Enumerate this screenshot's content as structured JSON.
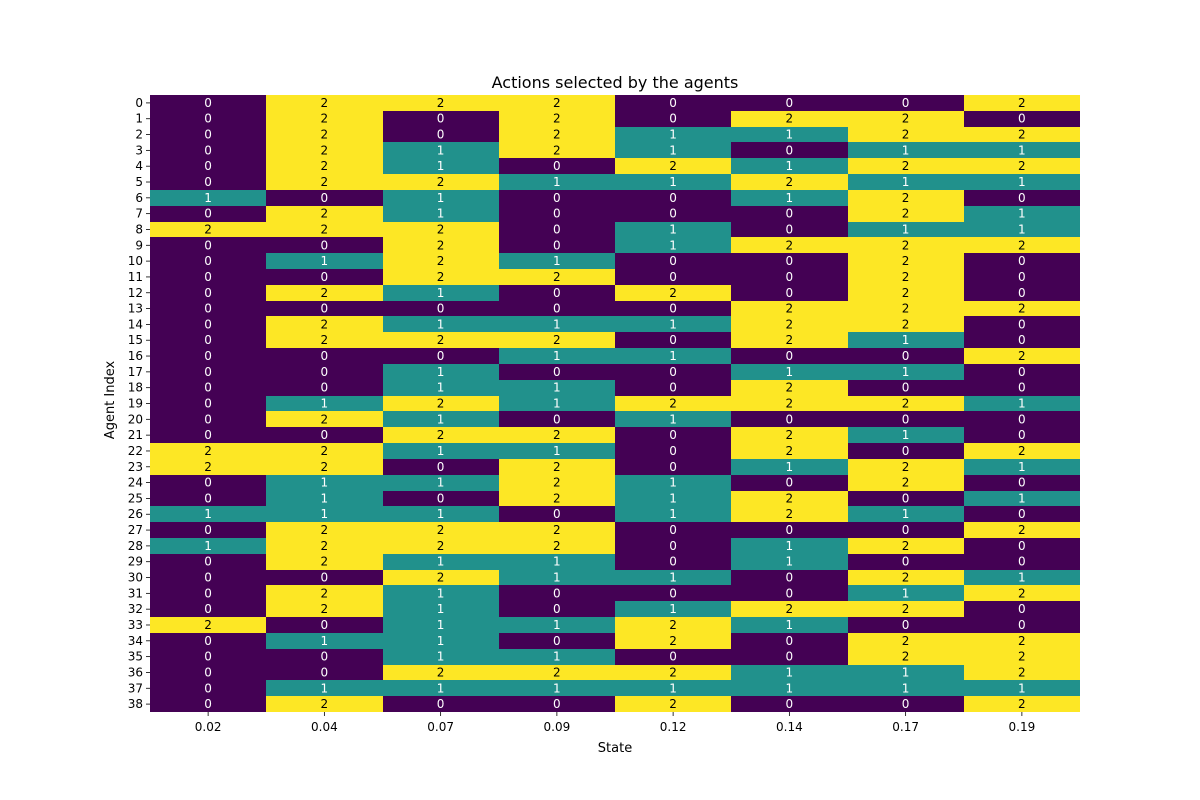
{
  "chart_data": {
    "type": "heatmap",
    "title": "Actions selected by the agents",
    "xlabel": "State",
    "ylabel": "Agent Index",
    "x": [
      "0.02",
      "0.04",
      "0.07",
      "0.09",
      "0.12",
      "0.14",
      "0.17",
      "0.19"
    ],
    "y": [
      "0",
      "1",
      "2",
      "3",
      "4",
      "5",
      "6",
      "7",
      "8",
      "9",
      "10",
      "11",
      "12",
      "13",
      "14",
      "15",
      "16",
      "17",
      "18",
      "19",
      "20",
      "21",
      "22",
      "23",
      "24",
      "25",
      "26",
      "27",
      "28",
      "29",
      "30",
      "31",
      "32",
      "33",
      "34",
      "35",
      "36",
      "37",
      "38"
    ],
    "values": [
      [
        0,
        2,
        2,
        2,
        0,
        0,
        0,
        2
      ],
      [
        0,
        2,
        0,
        2,
        0,
        2,
        2,
        0
      ],
      [
        0,
        2,
        0,
        2,
        1,
        1,
        2,
        2
      ],
      [
        0,
        2,
        1,
        2,
        1,
        0,
        1,
        1
      ],
      [
        0,
        2,
        1,
        0,
        2,
        1,
        2,
        2
      ],
      [
        0,
        2,
        2,
        1,
        1,
        2,
        1,
        1
      ],
      [
        1,
        0,
        1,
        0,
        0,
        1,
        2,
        0
      ],
      [
        0,
        2,
        1,
        0,
        0,
        0,
        2,
        1
      ],
      [
        2,
        2,
        2,
        0,
        1,
        0,
        1,
        1
      ],
      [
        0,
        0,
        2,
        0,
        1,
        2,
        2,
        2
      ],
      [
        0,
        1,
        2,
        1,
        0,
        0,
        2,
        0
      ],
      [
        0,
        0,
        2,
        2,
        0,
        0,
        2,
        0
      ],
      [
        0,
        2,
        1,
        0,
        2,
        0,
        2,
        0
      ],
      [
        0,
        0,
        0,
        0,
        0,
        2,
        2,
        2
      ],
      [
        0,
        2,
        1,
        1,
        1,
        2,
        2,
        0
      ],
      [
        0,
        2,
        2,
        2,
        0,
        2,
        1,
        0
      ],
      [
        0,
        0,
        0,
        1,
        1,
        0,
        0,
        2
      ],
      [
        0,
        0,
        1,
        0,
        0,
        1,
        1,
        0
      ],
      [
        0,
        0,
        1,
        1,
        0,
        2,
        0,
        0
      ],
      [
        0,
        1,
        2,
        1,
        2,
        2,
        2,
        1
      ],
      [
        0,
        2,
        1,
        0,
        1,
        0,
        0,
        0
      ],
      [
        0,
        0,
        2,
        2,
        0,
        2,
        1,
        0
      ],
      [
        2,
        2,
        1,
        1,
        0,
        2,
        0,
        2
      ],
      [
        2,
        2,
        0,
        2,
        0,
        1,
        2,
        1
      ],
      [
        0,
        1,
        1,
        2,
        1,
        0,
        2,
        0
      ],
      [
        0,
        1,
        0,
        2,
        1,
        2,
        0,
        1
      ],
      [
        1,
        1,
        1,
        0,
        1,
        2,
        1,
        0
      ],
      [
        0,
        2,
        2,
        2,
        0,
        0,
        0,
        2
      ],
      [
        1,
        2,
        2,
        2,
        0,
        1,
        2,
        0
      ],
      [
        0,
        2,
        1,
        1,
        0,
        1,
        0,
        0
      ],
      [
        0,
        0,
        2,
        1,
        1,
        0,
        2,
        1
      ],
      [
        0,
        2,
        1,
        0,
        0,
        0,
        1,
        2
      ],
      [
        0,
        2,
        1,
        0,
        1,
        2,
        2,
        0
      ],
      [
        2,
        0,
        1,
        1,
        2,
        1,
        0,
        0
      ],
      [
        0,
        1,
        1,
        0,
        2,
        0,
        2,
        2
      ],
      [
        0,
        0,
        1,
        1,
        0,
        0,
        2,
        2
      ],
      [
        0,
        0,
        2,
        2,
        2,
        1,
        1,
        2
      ],
      [
        0,
        1,
        1,
        1,
        1,
        1,
        1,
        1
      ],
      [
        0,
        2,
        0,
        0,
        2,
        0,
        0,
        2
      ]
    ],
    "colors": {
      "0": "#440154",
      "1": "#21918c",
      "2": "#fde725"
    },
    "label_colors": {
      "0": "#ffffff",
      "1": "#ffffff",
      "2": "#000000"
    },
    "colorbar": false,
    "grid": false
  }
}
